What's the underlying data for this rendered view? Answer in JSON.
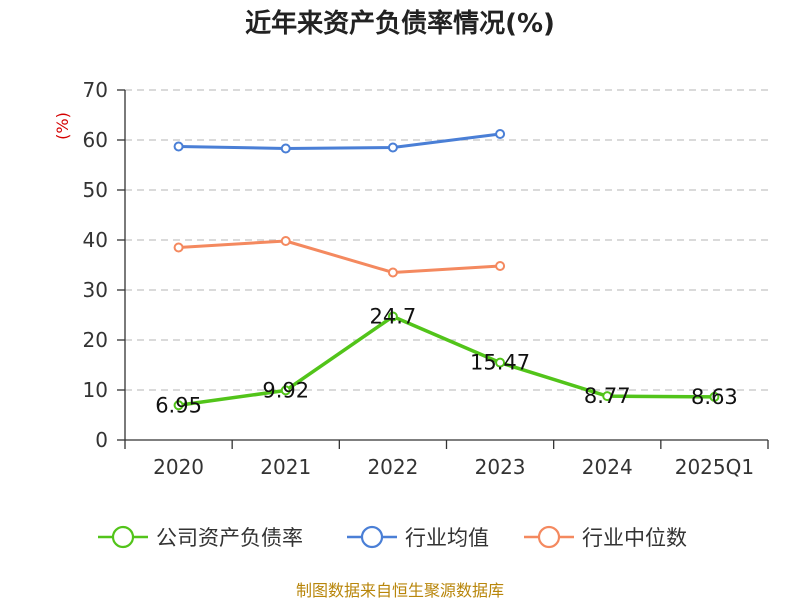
{
  "chart_data": {
    "type": "line",
    "title": "近年来资产负债率情况(%)",
    "y_unit": "(%)",
    "categories": [
      "2020",
      "2021",
      "2022",
      "2023",
      "2024",
      "2025Q1"
    ],
    "ylim": [
      0,
      70
    ],
    "yticks": [
      0,
      10,
      20,
      30,
      40,
      50,
      60,
      70
    ],
    "grid": true,
    "legend_position": "bottom",
    "series": [
      {
        "name": "公司资产负债率",
        "color": "#52c41a",
        "values": [
          6.95,
          9.92,
          24.7,
          15.47,
          8.77,
          8.63
        ],
        "labels": [
          "6.95",
          "9.92",
          "24.7",
          "15.47",
          "8.77",
          "8.63"
        ]
      },
      {
        "name": "行业均值",
        "color": "#4a7fd6",
        "values": [
          58.7,
          58.3,
          58.5,
          61.2,
          null,
          null
        ]
      },
      {
        "name": "行业中位数",
        "color": "#f4895f",
        "values": [
          38.5,
          39.8,
          33.5,
          34.8,
          null,
          null
        ]
      }
    ],
    "source": "制图数据来自恒生聚源数据库"
  }
}
